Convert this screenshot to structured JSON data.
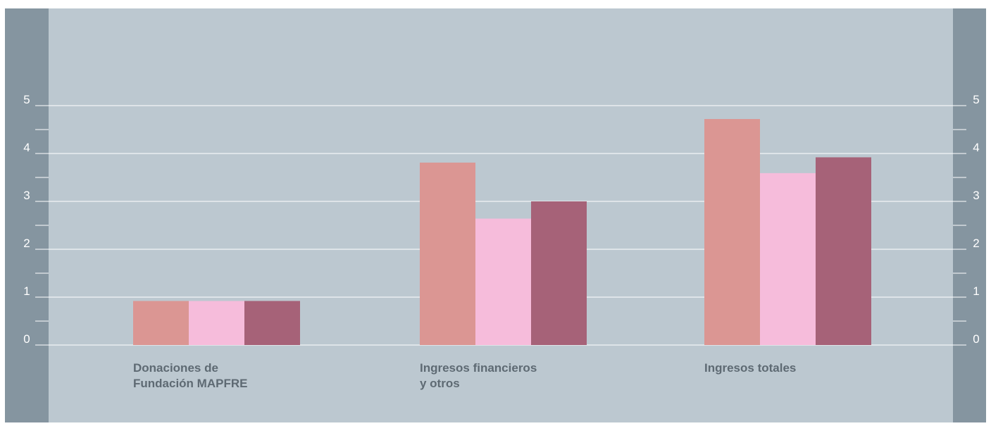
{
  "colors": {
    "background": "#ffffff",
    "panel": "#bcc8d0",
    "side_bar": "#8595a0",
    "grid": "#ffffff",
    "tick_text": "#ffffff",
    "label_text": "#5e6a73"
  },
  "chart_data": {
    "type": "bar",
    "title": "",
    "xlabel": "",
    "ylabel": "",
    "ylim": [
      0,
      5
    ],
    "yticks": [
      "0",
      "1",
      "2",
      "3",
      "4",
      "5"
    ],
    "grid": true,
    "legend": "none",
    "categories": [
      "Donaciones de\nFundación MAPFRE",
      "Ingresos financieros\ny otros",
      "Ingresos totales"
    ],
    "series": [
      {
        "color": "#db9693",
        "values": [
          0.92,
          3.81,
          4.72
        ]
      },
      {
        "color": "#f6bcdb",
        "values": [
          0.92,
          2.64,
          3.59
        ]
      },
      {
        "color": "#a66278",
        "values": [
          0.92,
          3.0,
          3.92
        ]
      }
    ]
  }
}
